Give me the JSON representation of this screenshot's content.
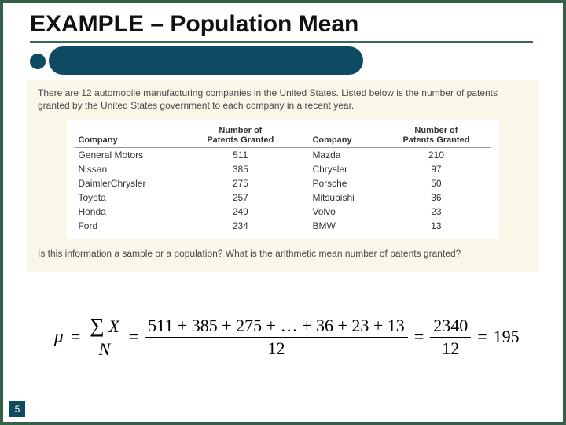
{
  "title": "EXAMPLE – Population Mean",
  "intro": "There are 12 automobile manufacturing companies in the United States. Listed below is the number of patents granted by the United States government to each company in a recent year.",
  "table": {
    "headers": {
      "company": "Company",
      "patents": "Number of\nPatents Granted"
    },
    "left": [
      {
        "company": "General Motors",
        "patents": "511"
      },
      {
        "company": "Nissan",
        "patents": "385"
      },
      {
        "company": "DaimlerChrysler",
        "patents": "275"
      },
      {
        "company": "Toyota",
        "patents": "257"
      },
      {
        "company": "Honda",
        "patents": "249"
      },
      {
        "company": "Ford",
        "patents": "234"
      }
    ],
    "right": [
      {
        "company": "Mazda",
        "patents": "210"
      },
      {
        "company": "Chrysler",
        "patents": "97"
      },
      {
        "company": "Porsche",
        "patents": "50"
      },
      {
        "company": "Mitsubishi",
        "patents": "36"
      },
      {
        "company": "Volvo",
        "patents": "23"
      },
      {
        "company": "BMW",
        "patents": "13"
      }
    ]
  },
  "question": "Is this information a sample or a population? What is the arithmetic mean number of patents granted?",
  "formula": {
    "mu": "µ",
    "sigmaX_top": "∑ X",
    "sigmaX_bot": "N",
    "expansion": "511 + 385 + 275 + … + 36 + 23 + 13",
    "expansion_denom": "12",
    "sum": "2340",
    "sum_denom": "12",
    "result": "195"
  },
  "pageNumber": "5",
  "colors": {
    "background": "#345f49",
    "accent": "#0e4b63",
    "intro_bg": "#faf6e8"
  }
}
